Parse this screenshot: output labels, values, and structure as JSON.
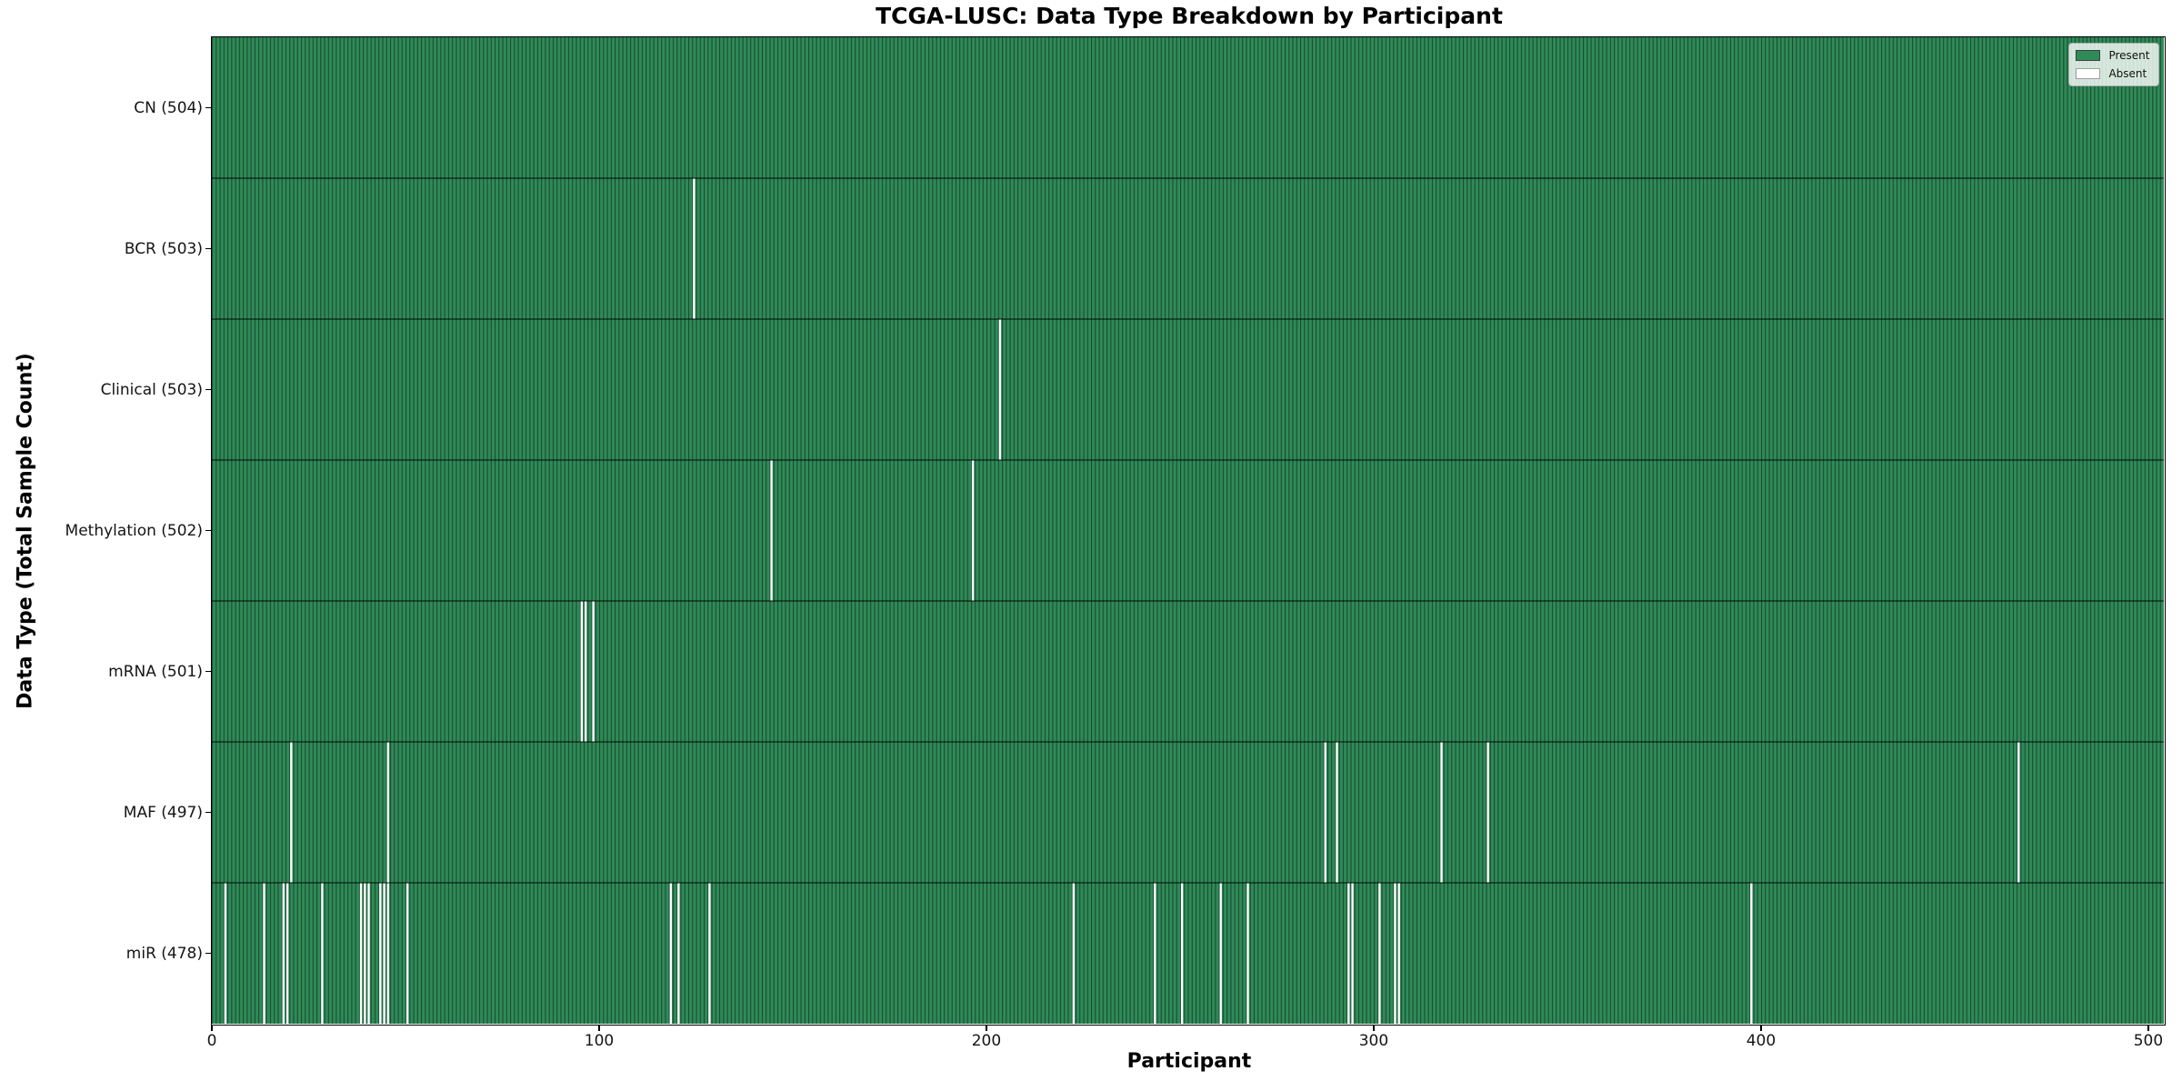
{
  "chart_data": {
    "type": "heatmap",
    "title": "TCGA-LUSC: Data Type Breakdown by Participant",
    "xlabel": "Participant",
    "ylabel": "Data Type (Total Sample Count)",
    "n_participants": 504,
    "x_ticks": [
      0,
      100,
      200,
      300,
      400,
      500
    ],
    "xlim": [
      0,
      504
    ],
    "grid": false,
    "legend_position": "upper right",
    "legend": [
      {
        "label": "Present",
        "color": "#2e8b57"
      },
      {
        "label": "Absent",
        "color": "#ffffff"
      }
    ],
    "colors": {
      "present": "#2e8b57",
      "bar_edge": "#1c4a33",
      "absent": "#ffffff",
      "row_separator": "rgba(0,0,0,0.62)"
    },
    "rows": [
      {
        "data_type": "CN",
        "label": "CN (504)",
        "present_count": 504,
        "absent_participants": []
      },
      {
        "data_type": "BCR",
        "label": "BCR (503)",
        "present_count": 503,
        "absent_participants": [
          124
        ]
      },
      {
        "data_type": "Clinical",
        "label": "Clinical (503)",
        "present_count": 503,
        "absent_participants": [
          203
        ]
      },
      {
        "data_type": "Methylation",
        "label": "Methylation (502)",
        "present_count": 502,
        "absent_participants": [
          144,
          196
        ]
      },
      {
        "data_type": "mRNA",
        "label": "mRNA (501)",
        "present_count": 501,
        "absent_participants": [
          95,
          96,
          98
        ]
      },
      {
        "data_type": "MAF",
        "label": "MAF (497)",
        "present_count": 497,
        "absent_participants": [
          20,
          45,
          287,
          290,
          317,
          329,
          466
        ]
      },
      {
        "data_type": "miR",
        "label": "miR (478)",
        "present_count": 478,
        "absent_participants": [
          3,
          13,
          18,
          19,
          28,
          38,
          39,
          40,
          43,
          44,
          45,
          50,
          118,
          120,
          128,
          222,
          243,
          250,
          260,
          267,
          293,
          294,
          301,
          305,
          306,
          397
        ]
      }
    ]
  }
}
